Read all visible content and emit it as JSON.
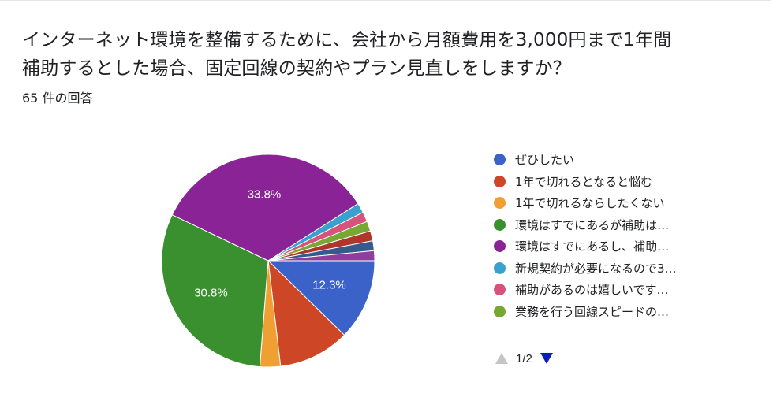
{
  "question": {
    "title_line1": "インターネット環境を整備するために、会社から月額費用を3,000円まで1年間",
    "title_line2": "補助するとした場合、固定回線の契約やプラン見直しをしますか？",
    "response_count": "65 件の回答"
  },
  "chart_data": {
    "type": "pie",
    "title": "",
    "slices": [
      {
        "label": "ぜひしたい",
        "value": 12.3,
        "display": "12.3%",
        "color": "#3b62c9"
      },
      {
        "label": "1年で切れるとなると悩む",
        "value": 10.8,
        "display": "",
        "color": "#cd4727"
      },
      {
        "label": "1年で切れるならしたくない",
        "value": 3.1,
        "display": "",
        "color": "#f0a032"
      },
      {
        "label": "環境はすでにあるが補助は…",
        "value": 30.8,
        "display": "30.8%",
        "color": "#3a8f2f"
      },
      {
        "label": "環境はすでにあるし、補助…",
        "value": 33.8,
        "display": "33.8%",
        "color": "#8a2496"
      },
      {
        "label": "新規契約が必要になるので3…",
        "value": 1.5,
        "display": "",
        "color": "#3aa0cf"
      },
      {
        "label": "補助があるのは嬉しいです…",
        "value": 1.5,
        "display": "",
        "color": "#d6537b"
      },
      {
        "label": "業務を行う回線スピードの…",
        "value": 1.5,
        "display": "",
        "color": "#76a833"
      },
      {
        "label": "",
        "value": 1.5,
        "display": "",
        "color": "#b0352a"
      },
      {
        "label": "",
        "value": 1.5,
        "display": "",
        "color": "#355a8f"
      },
      {
        "label": "",
        "value": 1.5,
        "display": "",
        "color": "#8d3f9b"
      }
    ],
    "legend_placement": "right"
  },
  "legend": {
    "items": [
      {
        "label": "ぜひしたい",
        "color": "#3b62c9"
      },
      {
        "label": "1年で切れるとなると悩む",
        "color": "#cd4727"
      },
      {
        "label": "1年で切れるならしたくない",
        "color": "#f0a032"
      },
      {
        "label": "環境はすでにあるが補助は…",
        "color": "#3a8f2f"
      },
      {
        "label": "環境はすでにあるし、補助…",
        "color": "#8a2496"
      },
      {
        "label": "新規契約が必要になるので3…",
        "color": "#3aa0cf"
      },
      {
        "label": "補助があるのは嬉しいです…",
        "color": "#d6537b"
      },
      {
        "label": "業務を行う回線スピードの…",
        "color": "#76a833"
      }
    ]
  },
  "pager": {
    "text": "1/2",
    "prev_icon": "triangle-up-icon",
    "next_icon": "triangle-down-icon",
    "prev_color": "#c6c6c6",
    "next_color": "#0b1fb5"
  }
}
